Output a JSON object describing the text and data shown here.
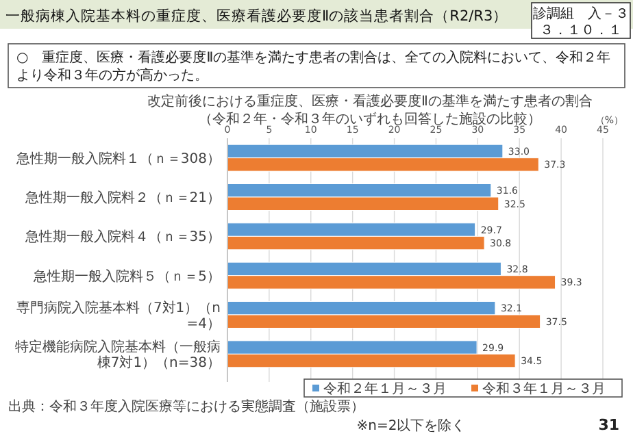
{
  "chart_data": {
    "type": "bar",
    "orientation": "horizontal",
    "title": "改定前後における重症度、医療・看護必要度Ⅱの基準を満たす患者の割合",
    "subtitle": "（令和２年・令和３年のいずれも回答した施設の比較）",
    "xlabel": "（%）",
    "categories": [
      "急性期一般入院料１（ｎ＝308）",
      "急性期一般入院料２（ｎ＝21）",
      "急性期一般入院料４（ｎ＝35）",
      "急性期一般入院料５（ｎ＝5）",
      "専門病院入院基本料（7対1）（n=4）",
      "特定機能病院入院基本料（一般病棟7対1）（n=38）"
    ],
    "series": [
      {
        "name": "令和２年１月～３月",
        "color": "#5b9bd5",
        "values": [
          33.0,
          31.6,
          29.7,
          32.8,
          32.1,
          29.9
        ],
        "value_labels": [
          "33.0",
          "31.6",
          "29.7",
          "32.8",
          "32.1",
          "29.9"
        ]
      },
      {
        "name": "令和３年１月～３月",
        "color": "#ed7d31",
        "values": [
          37.3,
          32.5,
          30.8,
          39.3,
          37.5,
          34.5
        ],
        "value_labels": [
          "37.3",
          "32.5",
          "30.8",
          "39.3",
          "37.5",
          "34.5"
        ]
      }
    ],
    "xlim": [
      0,
      45
    ],
    "xticks": [
      0,
      5,
      10,
      15,
      20,
      25,
      30,
      35,
      40,
      45
    ],
    "grid": "x",
    "legend": "bottom",
    "annotations": [
      "一般病棟入院基本料の重症度、医療看護必要度Ⅱの該当患者割合（R2/R3）",
      "診調組　入－３",
      "３．１０．１",
      "○　重症度、医療・看護必要度Ⅱの基準を満たす患者の割合は、全ての入院料において、令和２年より令和３年の方が高かった。",
      "出典：令和３年度入院医療等における実態調査（施設票）",
      "※n=2以下を除く",
      "31"
    ]
  }
}
